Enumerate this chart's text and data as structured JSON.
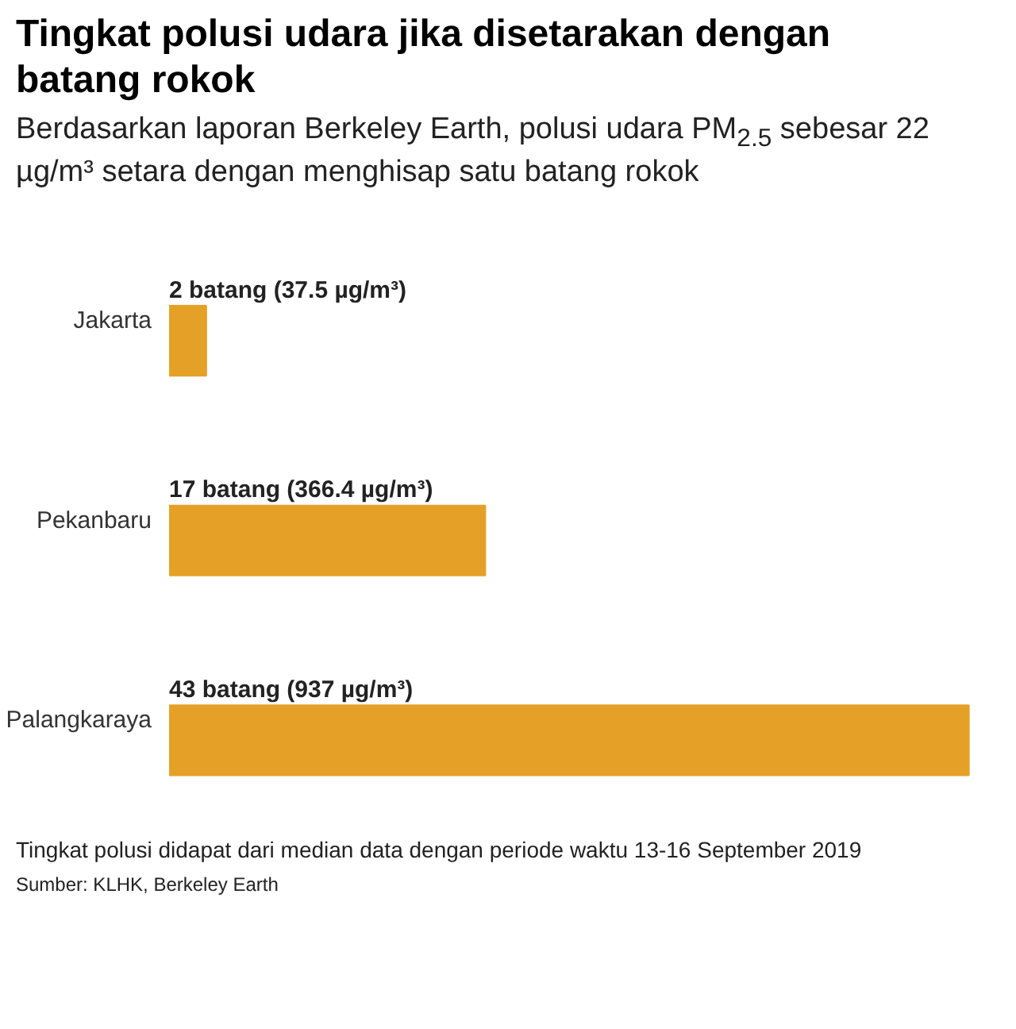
{
  "chart_data": {
    "type": "bar",
    "orientation": "horizontal",
    "title": "Tingkat polusi udara jika disetarakan dengan batang rokok",
    "subtitle": "Berdasarkan laporan Berkeley Earth, polusi udara PM$_{2.5}$ sebesar 22 µg/m³ setara dengan menghisap satu batang rokok",
    "categories": [
      "Jakarta",
      "Pekanbaru",
      "Palangkaraya"
    ],
    "values": [
      2,
      17,
      43
    ],
    "value_labels": [
      "2 batang (37.5 µg/m³)",
      "17 batang (366.4 µg/m³)",
      "43 batang (937 µg/m³)"
    ],
    "color": "#e5a127",
    "annotations": [
      "Tingkat polusi didapat dari median data dengan periode waktu 13-16 September 2019",
      "Sumber: KLHK, Berkeley Earth"
    ]
  }
}
